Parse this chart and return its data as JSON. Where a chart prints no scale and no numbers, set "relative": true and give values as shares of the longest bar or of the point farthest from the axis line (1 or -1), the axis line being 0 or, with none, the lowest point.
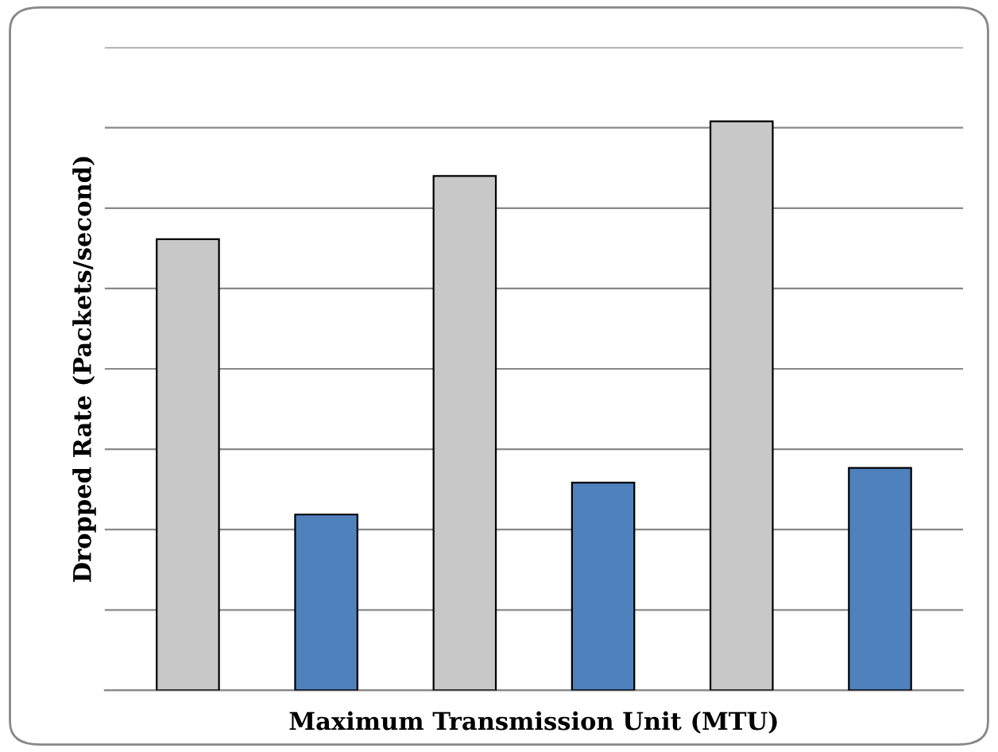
{
  "chart_data": {
    "type": "bar",
    "relative": true,
    "xlabel": "Maximum Transmission Unit (MTU)",
    "ylabel": "Dropped Rate (Packets/second)",
    "categories": [
      null,
      null,
      null,
      null,
      null,
      null
    ],
    "values": [
      0.793,
      0.309,
      0.904,
      0.365,
      1,
      0.391
    ],
    "colors": [
      "#c8c8c8",
      "#4f81bd",
      "#c8c8c8",
      "#4f81bd",
      "#c8c8c8",
      "#4f81bd"
    ],
    "grid": "y",
    "legend": false
  }
}
